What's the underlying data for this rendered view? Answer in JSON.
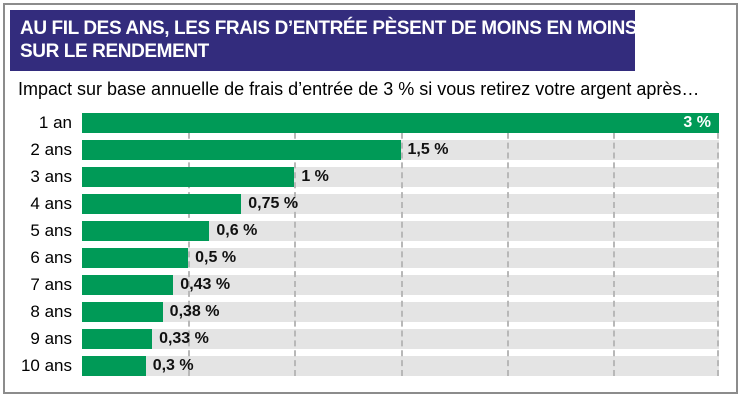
{
  "panel": {
    "title_lines": [
      "AU FIL DES ANS, LES FRAIS D’ENTRÉE PÈSENT DE MOINS EN MOINS",
      "SUR LE RENDEMENT"
    ]
  },
  "chart_data": {
    "type": "bar",
    "orientation": "horizontal",
    "title": "Impact sur base annuelle de frais d’entrée de 3 % si vous retirez votre argent après…",
    "categories": [
      "1 an",
      "2 ans",
      "3 ans",
      "4 ans",
      "5 ans",
      "6 ans",
      "7 ans",
      "8 ans",
      "9 ans",
      "10 ans"
    ],
    "values": [
      3,
      1.5,
      1,
      0.75,
      0.6,
      0.5,
      0.43,
      0.38,
      0.33,
      0.3
    ],
    "value_labels": [
      "3 %",
      "1,5 %",
      "1 %",
      "0,75 %",
      "0,6 %",
      "0,5 %",
      "0,43 %",
      "0,38 %",
      "0,33 %",
      "0,3 %"
    ],
    "xlabel": "",
    "ylabel": "",
    "xlim": [
      0,
      3
    ],
    "gridline_values": [
      0.5,
      1,
      1.5,
      2,
      2.5,
      3
    ],
    "grid": "dashed-vertical",
    "legend": "none",
    "bar_color": "#009A57",
    "track_color": "#E4E4E4"
  },
  "colors": {
    "banner_bg": "#332C7D",
    "banner_text": "#FFFFFF",
    "frame_border": "#8C8C8C",
    "grid": "#B8B8B8",
    "value_text": "#111111",
    "label_inside_bar": "#FFFFFF"
  }
}
